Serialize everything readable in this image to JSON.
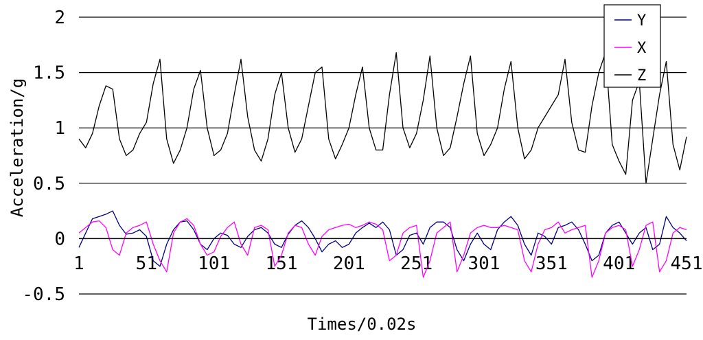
{
  "chart_data": {
    "type": "line",
    "title": "",
    "xlabel": "Times/0.02s",
    "ylabel": "Acceleration/g",
    "xlim": [
      1,
      451
    ],
    "ylim": [
      -0.5,
      2
    ],
    "x_ticks": [
      "1",
      "51",
      "101",
      "151",
      "201",
      "251",
      "301",
      "351",
      "401",
      "451"
    ],
    "y_ticks": [
      "2",
      "1.5",
      "1",
      "0.5",
      "0",
      "-0.5"
    ],
    "grid": "horizontal",
    "legend_position": "top-right",
    "series": [
      {
        "name": "Y",
        "color": "#000080",
        "x": [
          1,
          6,
          11,
          16,
          21,
          26,
          31,
          36,
          41,
          46,
          51,
          56,
          61,
          66,
          71,
          76,
          81,
          86,
          91,
          96,
          101,
          106,
          111,
          116,
          121,
          126,
          131,
          136,
          141,
          146,
          151,
          156,
          161,
          166,
          171,
          176,
          181,
          186,
          191,
          196,
          201,
          206,
          211,
          216,
          221,
          226,
          231,
          236,
          241,
          246,
          251,
          256,
          261,
          266,
          271,
          276,
          281,
          286,
          291,
          296,
          301,
          306,
          311,
          316,
          321,
          326,
          331,
          336,
          341,
          346,
          351,
          356,
          361,
          366,
          371,
          376,
          381,
          386,
          391,
          396,
          401,
          406,
          411,
          416,
          421,
          426,
          431,
          436,
          441,
          446,
          451
        ],
        "values": [
          -0.08,
          0.05,
          0.18,
          0.2,
          0.22,
          0.25,
          0.12,
          0.04,
          0.05,
          0.08,
          0.02,
          -0.2,
          -0.25,
          -0.05,
          0.08,
          0.15,
          0.16,
          0.08,
          -0.05,
          -0.1,
          0,
          0.05,
          0.03,
          -0.05,
          -0.08,
          0.02,
          0.08,
          0.1,
          0.05,
          -0.05,
          -0.08,
          0.04,
          0.12,
          0.16,
          0.1,
          0,
          -0.12,
          -0.05,
          -0.02,
          -0.08,
          -0.05,
          0.05,
          0.1,
          0.14,
          0.1,
          0.15,
          0.08,
          -0.15,
          -0.1,
          0.03,
          0.05,
          -0.05,
          0.1,
          0.15,
          0.15,
          0.1,
          -0.1,
          -0.2,
          -0.05,
          0.05,
          -0.05,
          -0.1,
          0.08,
          0.15,
          0.2,
          0.12,
          -0.05,
          -0.15,
          0.05,
          0.02,
          -0.05,
          0.1,
          0.12,
          0.15,
          0.08,
          -0.05,
          -0.2,
          -0.15,
          0.05,
          0.12,
          0.15,
          0.05,
          -0.05,
          0.05,
          0.1,
          -0.1,
          -0.05,
          0.2,
          0.1,
          0.05,
          -0.02
        ]
      },
      {
        "name": "X",
        "color": "#ff00ff",
        "x": [
          1,
          6,
          11,
          16,
          21,
          26,
          31,
          36,
          41,
          46,
          51,
          56,
          61,
          66,
          71,
          76,
          81,
          86,
          91,
          96,
          101,
          106,
          111,
          116,
          121,
          126,
          131,
          136,
          141,
          146,
          151,
          156,
          161,
          166,
          171,
          176,
          181,
          186,
          191,
          196,
          201,
          206,
          211,
          216,
          221,
          226,
          231,
          236,
          241,
          246,
          251,
          256,
          261,
          266,
          271,
          276,
          281,
          286,
          291,
          296,
          301,
          306,
          311,
          316,
          321,
          326,
          331,
          336,
          341,
          346,
          351,
          356,
          361,
          366,
          371,
          376,
          381,
          386,
          391,
          396,
          401,
          406,
          411,
          416,
          421,
          426,
          431,
          436,
          441,
          446,
          451
        ],
        "values": [
          0.05,
          0.1,
          0.15,
          0.16,
          0.1,
          -0.1,
          -0.15,
          0.05,
          0.1,
          0.12,
          0.15,
          -0.05,
          -0.2,
          -0.3,
          0.05,
          0.15,
          0.18,
          0.12,
          -0.05,
          -0.15,
          -0.12,
          0.02,
          0.1,
          0.15,
          -0.05,
          -0.15,
          0.1,
          0.12,
          0.08,
          -0.25,
          -0.15,
          0.05,
          0.12,
          0.1,
          -0.05,
          -0.15,
          0.02,
          0.08,
          0.1,
          0.12,
          0.13,
          0.1,
          0.12,
          0.15,
          0.13,
          0.08,
          -0.2,
          -0.15,
          0.05,
          0.1,
          0.12,
          -0.35,
          -0.2,
          0.05,
          0.1,
          0.15,
          -0.3,
          -0.15,
          0.05,
          0.1,
          0.12,
          0.1,
          0.1,
          0.12,
          0.1,
          0.08,
          -0.2,
          -0.3,
          -0.05,
          0.08,
          0.1,
          0.15,
          0.05,
          0.08,
          0.1,
          0.12,
          -0.35,
          -0.2,
          0.05,
          0.1,
          0.12,
          0.08,
          -0.25,
          -0.1,
          0.12,
          0.15,
          -0.3,
          -0.2,
          0.05,
          0.1,
          0.08
        ]
      },
      {
        "name": "Z",
        "color": "#000000",
        "x": [
          1,
          6,
          11,
          16,
          21,
          26,
          31,
          36,
          41,
          46,
          51,
          56,
          61,
          66,
          71,
          76,
          81,
          86,
          91,
          96,
          101,
          106,
          111,
          116,
          121,
          126,
          131,
          136,
          141,
          146,
          151,
          156,
          161,
          166,
          171,
          176,
          181,
          186,
          191,
          196,
          201,
          206,
          211,
          216,
          221,
          226,
          231,
          236,
          241,
          246,
          251,
          256,
          261,
          266,
          271,
          276,
          281,
          286,
          291,
          296,
          301,
          306,
          311,
          316,
          321,
          326,
          331,
          336,
          341,
          346,
          351,
          356,
          361,
          366,
          371,
          376,
          381,
          386,
          391,
          396,
          401,
          406,
          411,
          416,
          421,
          426,
          431,
          436,
          441,
          446,
          451
        ],
        "values": [
          0.9,
          0.82,
          0.95,
          1.2,
          1.38,
          1.35,
          0.9,
          0.75,
          0.8,
          0.95,
          1.05,
          1.4,
          1.62,
          0.9,
          0.68,
          0.8,
          1.0,
          1.35,
          1.52,
          1.0,
          0.75,
          0.8,
          0.95,
          1.3,
          1.62,
          1.1,
          0.8,
          0.7,
          0.9,
          1.3,
          1.5,
          1.0,
          0.78,
          0.9,
          1.2,
          1.5,
          1.55,
          0.9,
          0.72,
          0.85,
          1.0,
          1.3,
          1.55,
          1.0,
          0.8,
          0.8,
          1.3,
          1.68,
          1.0,
          0.82,
          0.95,
          1.25,
          1.65,
          1.0,
          0.75,
          0.82,
          1.1,
          1.4,
          1.65,
          0.95,
          0.75,
          0.85,
          1.0,
          1.35,
          1.6,
          1.0,
          0.72,
          0.8,
          1.0,
          1.1,
          1.2,
          1.3,
          1.62,
          1.05,
          0.8,
          0.78,
          1.2,
          1.5,
          1.68,
          0.85,
          0.7,
          0.58,
          1.25,
          1.42,
          0.5,
          0.9,
          1.3,
          1.6,
          0.85,
          0.62,
          0.92
        ]
      }
    ]
  }
}
